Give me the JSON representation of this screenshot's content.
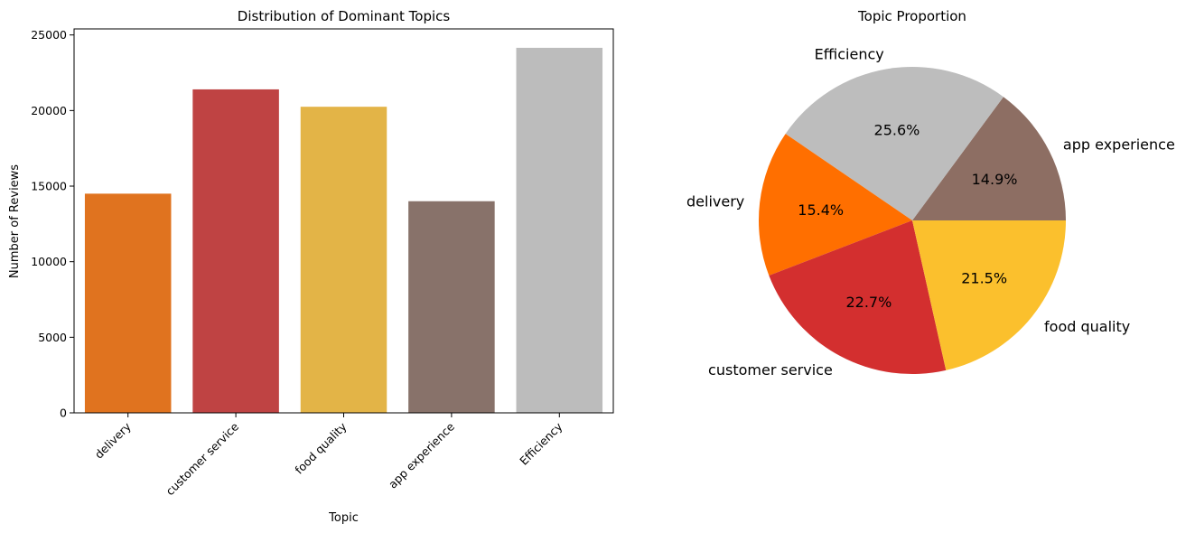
{
  "chart_data": [
    {
      "type": "bar",
      "title": "Distribution of Dominant Topics",
      "xlabel": "Topic",
      "ylabel": "Number of Reviews",
      "categories": [
        "delivery",
        "customer service",
        "food quality",
        "app experience",
        "Efficiency"
      ],
      "values": [
        14500,
        21400,
        20250,
        14000,
        24150
      ],
      "colors": [
        "#e0731f",
        "#bf4343",
        "#e3b447",
        "#88726a",
        "#bcbcbc"
      ],
      "yticks": [
        0,
        5000,
        10000,
        15000,
        20000,
        25000
      ],
      "ylim": [
        0,
        25400
      ],
      "grid": false
    },
    {
      "type": "pie",
      "title": "Topic Proportion",
      "labels": [
        "app experience",
        "Efficiency",
        "delivery",
        "customer service",
        "food quality"
      ],
      "values": [
        14.9,
        25.6,
        15.4,
        22.7,
        21.5
      ],
      "pct_labels": [
        "14.9%",
        "25.6%",
        "15.4%",
        "22.7%",
        "21.5%"
      ],
      "colors": [
        "#8d6e63",
        "#bdbdbd",
        "#ff6f00",
        "#d32f2f",
        "#fbc02d"
      ]
    }
  ]
}
